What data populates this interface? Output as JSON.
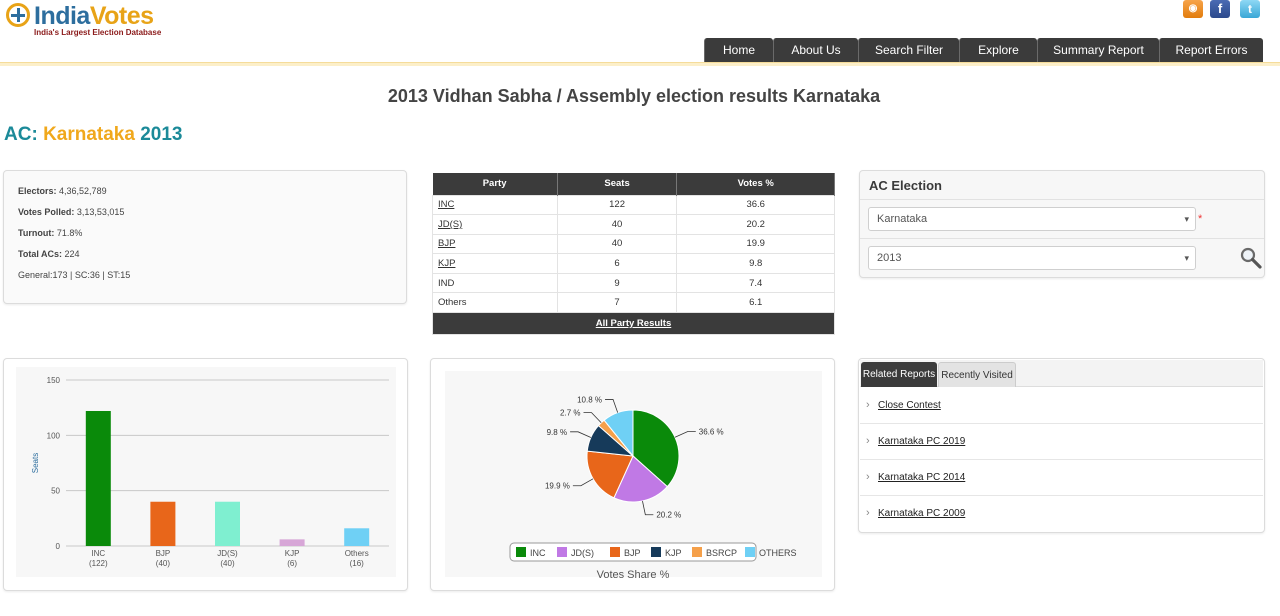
{
  "header": {
    "logo_part1": "India",
    "logo_part2": "Votes",
    "tagline": "India's Largest Election Database",
    "nav": [
      "Home",
      "About Us",
      "Search Filter",
      "Explore",
      "Summary Report",
      "Report Errors"
    ],
    "social_icons": [
      "rss-icon",
      "facebook-icon",
      "twitter-icon"
    ]
  },
  "page_title": "2013 Vidhan Sabha / Assembly election results Karnataka",
  "ac_heading": {
    "prefix": "AC:",
    "state": "Karnataka",
    "year": "2013"
  },
  "stats": {
    "electors_label": "Electors:",
    "electors": "4,36,52,789",
    "votes_polled_label": "Votes Polled:",
    "votes_polled": "3,13,53,015",
    "turnout_label": "Turnout:",
    "turnout": "71.8%",
    "total_acs_label": "Total ACs:",
    "total_acs": "224",
    "reserved": "General:173 | SC:36 | ST:15"
  },
  "results_table": {
    "headers": [
      "Party",
      "Seats",
      "Votes %"
    ],
    "rows": [
      {
        "party": "INC",
        "seats": "122",
        "votes": "36.6",
        "link": true
      },
      {
        "party": "JD(S)",
        "seats": "40",
        "votes": "20.2",
        "link": true
      },
      {
        "party": "BJP",
        "seats": "40",
        "votes": "19.9",
        "link": true
      },
      {
        "party": "KJP",
        "seats": "6",
        "votes": "9.8",
        "link": true
      },
      {
        "party": "IND",
        "seats": "9",
        "votes": "7.4",
        "link": false
      },
      {
        "party": "Others",
        "seats": "7",
        "votes": "6.1",
        "link": false
      }
    ],
    "footer_link": "All Party Results"
  },
  "ac_election": {
    "title": "AC Election",
    "state_select": "Karnataka",
    "year_select": "2013",
    "required_mark": "*"
  },
  "related": {
    "tabs": [
      "Related Reports",
      "Recently Visited"
    ],
    "links": [
      "Close Contest",
      "Karnataka PC 2019",
      "Karnataka PC 2014",
      "Karnataka PC 2009"
    ]
  },
  "chart_data": [
    {
      "type": "bar",
      "ylabel": "Seats",
      "ylim": [
        0,
        150
      ],
      "yticks": [
        0,
        50,
        100,
        150
      ],
      "categories": [
        "INC",
        "BJP",
        "JD(S)",
        "KJP",
        "Others"
      ],
      "category_sublabels": [
        "(122)",
        "(40)",
        "(40)",
        "(6)",
        "(16)"
      ],
      "values": [
        122,
        40,
        40,
        6,
        16
      ],
      "colors": [
        "#0a8a0a",
        "#e8661a",
        "#7fefd0",
        "#d7a6d7",
        "#6fd0f5"
      ],
      "grid": true
    },
    {
      "type": "pie",
      "title": "Votes Share %",
      "slices": [
        {
          "name": "INC",
          "value": 36.6,
          "label": "36.6 %",
          "color": "#0a8a0a"
        },
        {
          "name": "JD(S)",
          "value": 20.2,
          "label": "20.2 %",
          "color": "#c079e5"
        },
        {
          "name": "BJP",
          "value": 19.9,
          "label": "19.9 %",
          "color": "#e8661a"
        },
        {
          "name": "KJP",
          "value": 9.8,
          "label": "9.8 %",
          "color": "#163a5a"
        },
        {
          "name": "BSRCP",
          "value": 2.7,
          "label": "2.7 %",
          "color": "#f5a04a"
        },
        {
          "name": "OTHERS",
          "value": 10.8,
          "label": "10.8 %",
          "color": "#6fd0f5"
        }
      ],
      "legend": [
        "INC",
        "JD(S)",
        "BJP",
        "KJP",
        "BSRCP",
        "OTHERS"
      ],
      "legend_position": "bottom"
    }
  ]
}
